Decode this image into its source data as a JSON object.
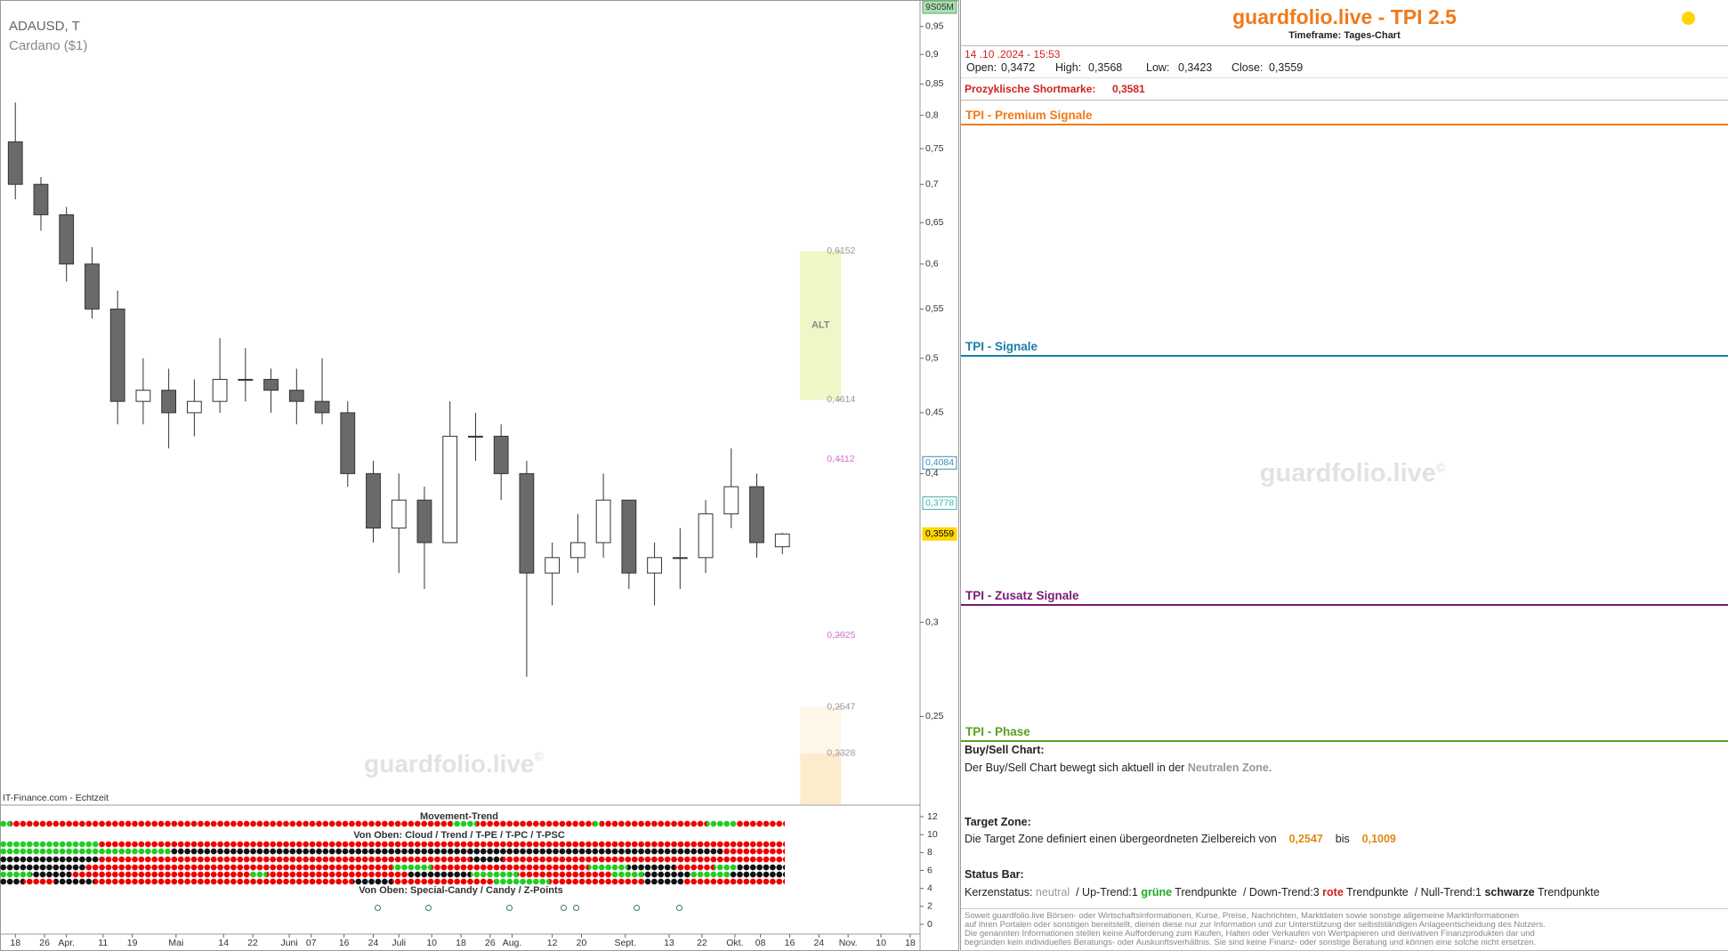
{
  "chart_data": {
    "type": "candlestick",
    "symbol": "ADAUSD, T",
    "name": "Cardano ($1)",
    "badge": "9S05M",
    "source": "IT-Finance.com - Echtzeit",
    "watermark": "guardfolio.live",
    "watermark_mark": "©",
    "x": [
      0,
      7,
      14,
      21,
      28,
      35,
      42,
      49,
      56,
      63,
      70,
      77,
      84,
      91,
      98,
      105,
      112,
      119,
      126,
      133,
      140,
      147,
      154,
      161,
      168,
      175,
      182,
      189,
      196,
      203,
      210
    ],
    "open": [
      0.76,
      0.7,
      0.66,
      0.6,
      0.55,
      0.46,
      0.47,
      0.45,
      0.46,
      0.48,
      0.48,
      0.47,
      0.46,
      0.45,
      0.4,
      0.36,
      0.38,
      0.35,
      0.43,
      0.43,
      0.4,
      0.33,
      0.34,
      0.35,
      0.38,
      0.33,
      0.34,
      0.34,
      0.37,
      0.39,
      0.3472
    ],
    "high": [
      0.82,
      0.71,
      0.67,
      0.62,
      0.57,
      0.5,
      0.49,
      0.48,
      0.52,
      0.51,
      0.49,
      0.49,
      0.5,
      0.46,
      0.41,
      0.4,
      0.39,
      0.46,
      0.45,
      0.44,
      0.41,
      0.35,
      0.37,
      0.4,
      0.38,
      0.35,
      0.36,
      0.38,
      0.42,
      0.4,
      0.3568
    ],
    "low": [
      0.68,
      0.64,
      0.58,
      0.54,
      0.44,
      0.44,
      0.42,
      0.43,
      0.45,
      0.46,
      0.45,
      0.44,
      0.44,
      0.39,
      0.35,
      0.33,
      0.32,
      0.35,
      0.41,
      0.38,
      0.27,
      0.31,
      0.33,
      0.34,
      0.32,
      0.31,
      0.32,
      0.33,
      0.36,
      0.34,
      0.3423
    ],
    "close": [
      0.7,
      0.66,
      0.6,
      0.55,
      0.46,
      0.47,
      0.45,
      0.46,
      0.48,
      0.48,
      0.47,
      0.46,
      0.45,
      0.4,
      0.36,
      0.38,
      0.35,
      0.43,
      0.43,
      0.4,
      0.33,
      0.34,
      0.35,
      0.38,
      0.33,
      0.34,
      0.34,
      0.37,
      0.39,
      0.35,
      0.3559
    ],
    "up_color": "#ffffff",
    "down_color": "#6a6a6a",
    "wick_color": "#333333",
    "xlim": [
      -4.2,
      247.7
    ],
    "xticks": [
      {
        "value": 0,
        "label": "18"
      },
      {
        "value": 8,
        "label": "26"
      },
      {
        "value": 14,
        "label": "Apr."
      },
      {
        "value": 24,
        "label": "11"
      },
      {
        "value": 32,
        "label": "19"
      },
      {
        "value": 44,
        "label": "Mai"
      },
      {
        "value": 57,
        "label": "14"
      },
      {
        "value": 65,
        "label": "22"
      },
      {
        "value": 75,
        "label": "Juni"
      },
      {
        "value": 81,
        "label": "07"
      },
      {
        "value": 90,
        "label": "16"
      },
      {
        "value": 98,
        "label": "24"
      },
      {
        "value": 105,
        "label": "Juli"
      },
      {
        "value": 114,
        "label": "10"
      },
      {
        "value": 122,
        "label": "18"
      },
      {
        "value": 130,
        "label": "26"
      },
      {
        "value": 136,
        "label": "Aug."
      },
      {
        "value": 147,
        "label": "12"
      },
      {
        "value": 155,
        "label": "20"
      },
      {
        "value": 167,
        "label": "Sept."
      },
      {
        "value": 179,
        "label": "13"
      },
      {
        "value": 188,
        "label": "22"
      },
      {
        "value": 197,
        "label": "Okt."
      },
      {
        "value": 204,
        "label": "08"
      },
      {
        "value": 212,
        "label": "16"
      },
      {
        "value": 220,
        "label": "24"
      },
      {
        "value": 228,
        "label": "Nov."
      },
      {
        "value": 237,
        "label": "10"
      },
      {
        "value": 245,
        "label": "18"
      }
    ],
    "ylim": [
      0.211,
      1.0
    ],
    "log_scale": true,
    "yticks": [
      {
        "value": 0.95,
        "label": "0,95"
      },
      {
        "value": 0.9,
        "label": "0,9"
      },
      {
        "value": 0.85,
        "label": "0,85"
      },
      {
        "value": 0.8,
        "label": "0,8"
      },
      {
        "value": 0.75,
        "label": "0,75"
      },
      {
        "value": 0.7,
        "label": "0,7"
      },
      {
        "value": 0.65,
        "label": "0,65"
      },
      {
        "value": 0.6,
        "label": "0,6"
      },
      {
        "value": 0.55,
        "label": "0,55"
      },
      {
        "value": 0.5,
        "label": "0,5"
      },
      {
        "value": 0.45,
        "label": "0,45"
      },
      {
        "value": 0.4,
        "label": "0,4"
      },
      {
        "value": 0.3,
        "label": "0,3"
      },
      {
        "value": 0.25,
        "label": "0,25"
      }
    ],
    "levels": [
      {
        "value": 0.6152,
        "label": "0,6152",
        "color": "#999999"
      },
      {
        "value": 0.4614,
        "label": "0,4614",
        "color": "#999999"
      },
      {
        "value": 0.4112,
        "label": "0,4112",
        "color": "#d070d0"
      },
      {
        "value": 0.2925,
        "label": "0,2925",
        "color": "#d070d0"
      },
      {
        "value": 0.2547,
        "label": "0,2547",
        "color": "#999999"
      },
      {
        "value": 0.2328,
        "label": "0,2328",
        "color": "#999999"
      }
    ],
    "zone_label": "ALT",
    "axis_markers": [
      {
        "value": 0.4084,
        "label": "0,4084",
        "color": "#3a8fb7"
      },
      {
        "value": 0.3778,
        "label": "0,3778",
        "color": "#40b0b0"
      },
      {
        "value": 0.3559,
        "label": "0,3559",
        "color": "#ffd700"
      }
    ],
    "indicator": {
      "labels": [
        "Movement-Trend",
        "Von Oben: Cloud / Trend / T-PE / T-PC / T-PSC",
        "Von Oben: Special-Candy / Candy / Z-Points"
      ],
      "ylim": [
        0,
        12
      ],
      "yticks": [
        12,
        10,
        8,
        6,
        4,
        2,
        0
      ]
    }
  },
  "panel": {
    "title": "guardfolio.live - TPI 2.5",
    "timeframe": "Timeframe: Tages-Chart",
    "datetime": "14 .10 .2024  - 15:53",
    "ohlc": [
      {
        "label": "Open:",
        "value": "0,3472"
      },
      {
        "label": "High:",
        "value": "0,3568"
      },
      {
        "label": "Low:",
        "value": "0,3423"
      },
      {
        "label": "Close:",
        "value": "0,3559"
      }
    ],
    "shortmark": {
      "label": "Prozyklische Shortmarke:",
      "value": "0,3581"
    },
    "sections": [
      "TPI - Premium Signale",
      "TPI - Signale",
      "TPI - Zusatz Signale",
      "TPI - Phase"
    ],
    "watermark": "guardfolio.live",
    "watermark_mark": "©",
    "buy_sell": {
      "heading": "Buy/Sell Chart:",
      "text": "Der Buy/Sell Chart bewegt sich aktuell in der",
      "zone": "Neutralen Zone."
    },
    "target": {
      "heading": "Target Zone:",
      "text": "Die Target Zone definiert einen übergeordneten Zielbereich von",
      "from": "0,2547",
      "and": "bis",
      "to": "0,1009"
    },
    "status": {
      "heading": "Status Bar:",
      "parts": [
        "Kerzenstatus:",
        "neutral",
        "/ Up-Trend:",
        "1",
        "grüne",
        "Trendpunkte",
        "/ Down-Trend:",
        "3",
        "rote",
        "Trendpunkte",
        "/ Null-Trend:",
        "1",
        "schwarze",
        "Trendpunkte"
      ]
    },
    "disclaimer": [
      "Soweit guardfolio.live Börsen- oder Wirtschaftsinformationen, Kurse, Preise, Nachrichten, Marktdaten sowie sonstige allgemeine Marktinformationen",
      "auf ihren Portalen oder sonstigen bereitstellt, dienen diese nur zur Information und zur Unterstützung der selbstständigen Anlageentscheidung des Nutzers.",
      "Die genannten Informationen stellen keine Aufforderung zum Kaufen, Halten oder Verkaufen von Wertpapieren und derivativen Finanzprodukten dar und",
      "begründen kein individuelles Beratungs- oder Auskunftsverhältnis. Sie sind keine Finanz- oder sonstige Beratung und können eine solche nicht ersetzen."
    ]
  }
}
